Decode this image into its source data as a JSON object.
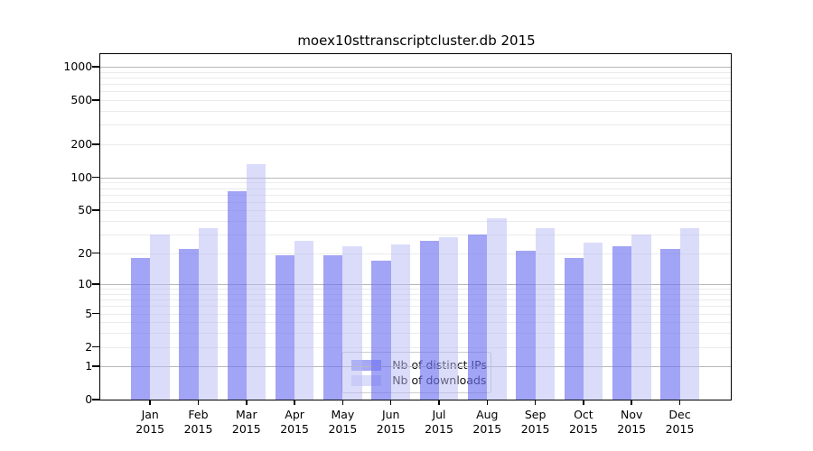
{
  "chart_data": {
    "type": "bar",
    "title": "moex10sttranscriptcluster.db 2015",
    "scale": "log1p",
    "grid": true,
    "legend_position": "lower center",
    "categories": [
      "Jan",
      "Feb",
      "Mar",
      "Apr",
      "May",
      "Jun",
      "Jul",
      "Aug",
      "Sep",
      "Oct",
      "Nov",
      "Dec"
    ],
    "year": "2015",
    "series": [
      {
        "name": "Nb of distinct IPs",
        "values": [
          18,
          22,
          75,
          19,
          19,
          17,
          26,
          30,
          21,
          18,
          23,
          22
        ],
        "swatch_color": "#a6a8f5",
        "fill_color": "rgba(110,113,240,0.64)"
      },
      {
        "name": "Nb of downloads",
        "values": [
          30,
          34,
          133,
          26,
          23,
          24,
          28,
          42,
          34,
          25,
          30,
          34
        ],
        "swatch_color": "#dcddf9",
        "fill_color": "rgba(183,185,245,0.5)"
      }
    ],
    "yticks": [
      0,
      1,
      2,
      5,
      10,
      20,
      50,
      100,
      200,
      500,
      1000
    ],
    "ylim": [
      0,
      1300
    ],
    "xlabel": "",
    "ylabel": "",
    "colors": {
      "grid_major": "#b8b8b8",
      "grid_minor": "#ebebeb",
      "axis": "#000000"
    }
  }
}
